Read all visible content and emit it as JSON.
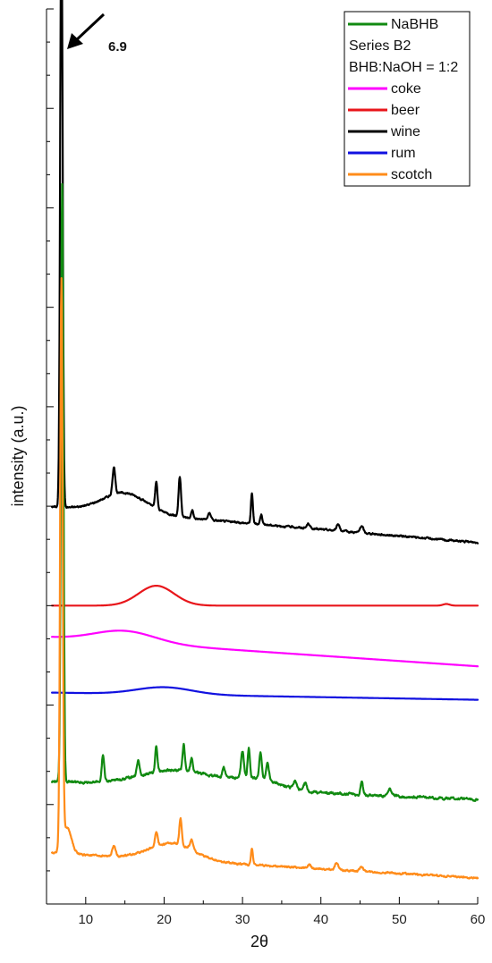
{
  "chart_data": {
    "type": "line",
    "title": "",
    "xlabel": "2θ",
    "ylabel": "intensity (a.u.)",
    "xlim": [
      5,
      60
    ],
    "x_ticks": [
      "10",
      "20",
      "30",
      "40",
      "50",
      "60"
    ],
    "y_tick_labels": "none",
    "grid": false,
    "legend": {
      "placement": "top-right",
      "entries": [
        {
          "label": "NaBHB",
          "color": "#118a11"
        },
        {
          "label": "Series B2",
          "color": null
        },
        {
          "label": "BHB:NaOH = 1:2",
          "color": null
        },
        {
          "label": "coke",
          "color": "#ff00ff"
        },
        {
          "label": "beer",
          "color": "#e8161b"
        },
        {
          "label": "wine",
          "color": "#000000"
        },
        {
          "label": "rum",
          "color": "#1111e0"
        },
        {
          "label": "scotch",
          "color": "#ff8c1a"
        }
      ]
    },
    "annotation": {
      "text": "6.9",
      "x": 6.9,
      "series": "wine"
    },
    "series": [
      {
        "name": "wine",
        "color": "#000000",
        "baseline": 12.0,
        "slope": -0.02,
        "noise": 0.05,
        "bumps": [
          [
            15,
            4.0,
            0.6
          ]
        ],
        "peaks": [
          [
            6.9,
            18.5,
            0.22
          ],
          [
            13.6,
            0.8,
            0.25
          ],
          [
            19.0,
            0.8,
            0.2
          ],
          [
            22.0,
            1.2,
            0.22
          ],
          [
            23.6,
            0.25,
            0.2
          ],
          [
            25.8,
            0.2,
            0.3
          ],
          [
            31.2,
            0.9,
            0.18
          ],
          [
            32.4,
            0.3,
            0.2
          ],
          [
            38.4,
            0.15,
            0.25
          ],
          [
            42.2,
            0.2,
            0.3
          ],
          [
            45.2,
            0.2,
            0.3
          ]
        ]
      },
      {
        "name": "beer",
        "color": "#e8161b",
        "baseline": 9.0,
        "slope": 0.0,
        "noise": 0.0,
        "bumps": [
          [
            19,
            3.2,
            0.6
          ]
        ],
        "peaks": [
          [
            56.0,
            0.05,
            0.6
          ]
        ]
      },
      {
        "name": "coke",
        "color": "#ff00ff",
        "baseline": 8.05,
        "slope": -0.016,
        "noise": 0.0,
        "bumps": [
          [
            15,
            5.5,
            0.35
          ]
        ],
        "peaks": []
      },
      {
        "name": "rum",
        "color": "#1111e0",
        "baseline": 6.38,
        "slope": -0.004,
        "noise": 0.0,
        "bumps": [
          [
            20,
            5.0,
            0.22
          ]
        ],
        "peaks": []
      },
      {
        "name": "NaBHB",
        "color": "#118a11",
        "baseline": 3.7,
        "slope": -0.01,
        "noise": 0.07,
        "bumps": [
          [
            22,
            7.0,
            0.5
          ],
          [
            32,
            4.0,
            0.3
          ]
        ],
        "peaks": [
          [
            7.0,
            18.0,
            0.22
          ],
          [
            12.2,
            0.8,
            0.22
          ],
          [
            16.7,
            0.5,
            0.25
          ],
          [
            19.0,
            0.8,
            0.2
          ],
          [
            22.5,
            0.8,
            0.2
          ],
          [
            23.5,
            0.4,
            0.2
          ],
          [
            27.6,
            0.3,
            0.25
          ],
          [
            30.0,
            0.8,
            0.25
          ],
          [
            30.8,
            0.9,
            0.2
          ],
          [
            32.3,
            0.8,
            0.22
          ],
          [
            33.2,
            0.5,
            0.25
          ],
          [
            36.7,
            0.25,
            0.3
          ],
          [
            38.0,
            0.25,
            0.25
          ],
          [
            45.2,
            0.4,
            0.2
          ],
          [
            48.8,
            0.2,
            0.3
          ]
        ]
      },
      {
        "name": "scotch",
        "color": "#ff8c1a",
        "baseline": 1.55,
        "slope": -0.014,
        "noise": 0.05,
        "bumps": [
          [
            21,
            4.0,
            0.5
          ]
        ],
        "peaks": [
          [
            6.9,
            17.0,
            0.22
          ],
          [
            7.6,
            0.8,
            0.8
          ],
          [
            13.6,
            0.3,
            0.3
          ],
          [
            19.0,
            0.4,
            0.25
          ],
          [
            22.1,
            0.8,
            0.22
          ],
          [
            23.5,
            0.3,
            0.3
          ],
          [
            31.2,
            0.5,
            0.18
          ],
          [
            38.5,
            0.1,
            0.3
          ],
          [
            42.0,
            0.2,
            0.3
          ],
          [
            45.2,
            0.15,
            0.3
          ]
        ]
      }
    ]
  }
}
